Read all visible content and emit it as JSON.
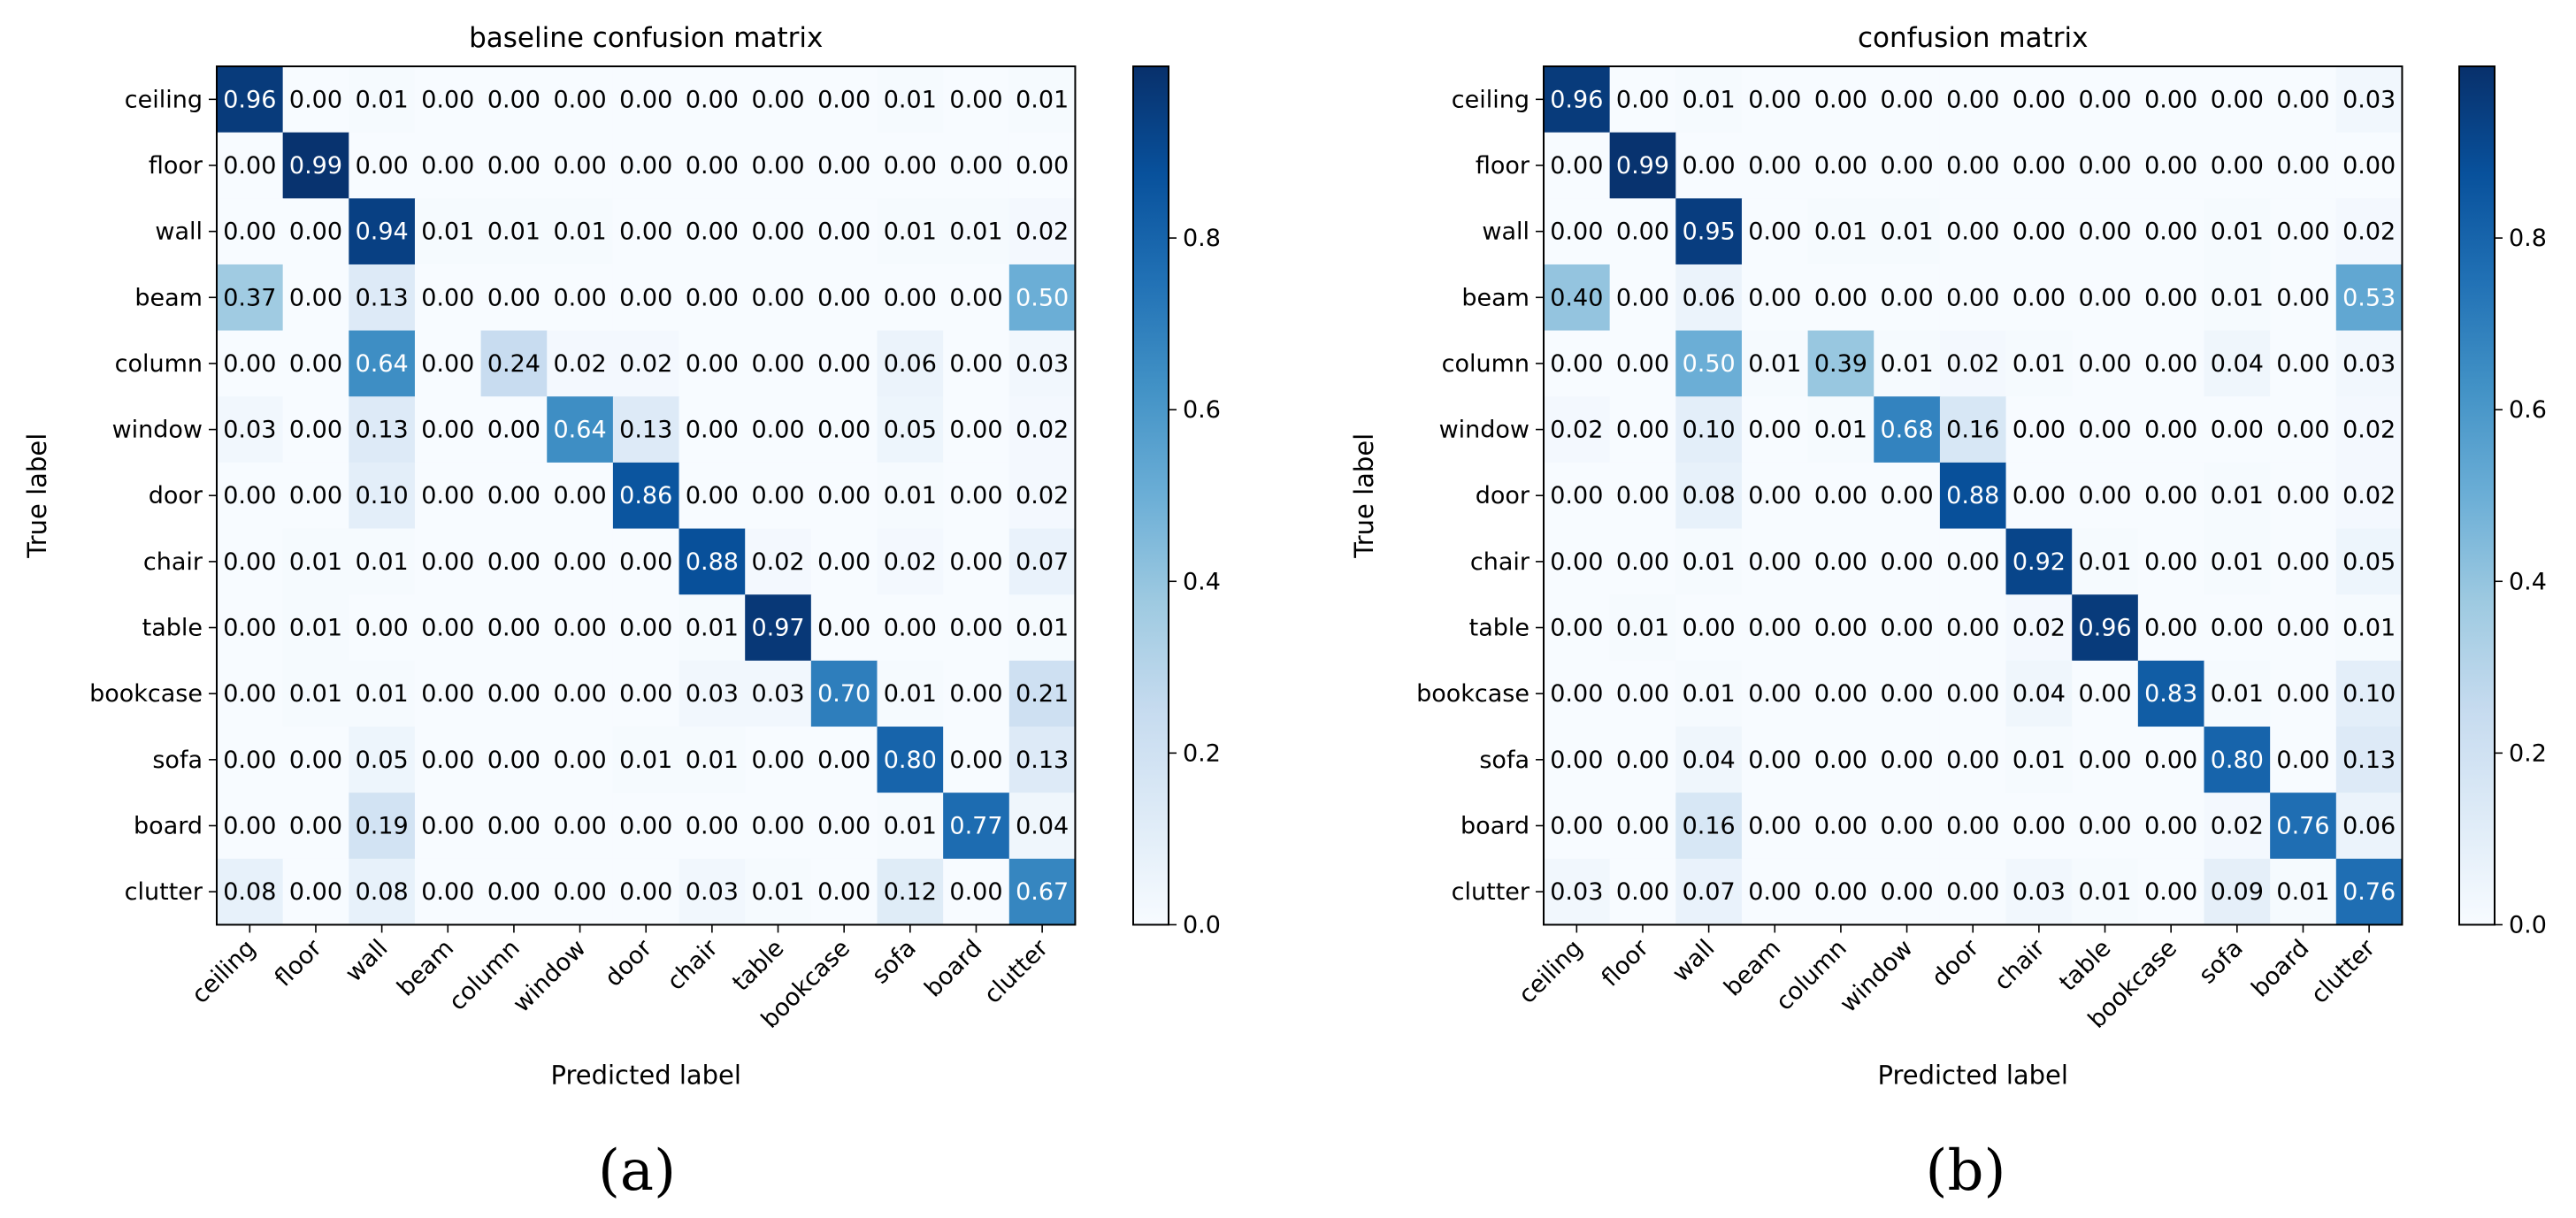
{
  "chart_data": [
    {
      "type": "heatmap",
      "panel": "(a)",
      "title": "baseline confusion matrix",
      "xlabel": "Predicted label",
      "ylabel": "True label",
      "classes": [
        "ceiling",
        "floor",
        "wall",
        "beam",
        "column",
        "window",
        "door",
        "chair",
        "table",
        "bookcase",
        "sofa",
        "board",
        "clutter"
      ],
      "colorbar": {
        "range": [
          0,
          1
        ],
        "ticks": [
          "0.0",
          "0.2",
          "0.4",
          "0.6",
          "0.8"
        ],
        "colormap": "Blues"
      },
      "values": [
        [
          0.96,
          0.0,
          0.01,
          0.0,
          0.0,
          0.0,
          0.0,
          0.0,
          0.0,
          0.0,
          0.01,
          0.0,
          0.01
        ],
        [
          0.0,
          0.99,
          0.0,
          0.0,
          0.0,
          0.0,
          0.0,
          0.0,
          0.0,
          0.0,
          0.0,
          0.0,
          0.0
        ],
        [
          0.0,
          0.0,
          0.94,
          0.01,
          0.01,
          0.01,
          0.0,
          0.0,
          0.0,
          0.0,
          0.01,
          0.01,
          0.02
        ],
        [
          0.37,
          0.0,
          0.13,
          0.0,
          0.0,
          0.0,
          0.0,
          0.0,
          0.0,
          0.0,
          0.0,
          0.0,
          0.5
        ],
        [
          0.0,
          0.0,
          0.64,
          0.0,
          0.24,
          0.02,
          0.02,
          0.0,
          0.0,
          0.0,
          0.06,
          0.0,
          0.03
        ],
        [
          0.03,
          0.0,
          0.13,
          0.0,
          0.0,
          0.64,
          0.13,
          0.0,
          0.0,
          0.0,
          0.05,
          0.0,
          0.02
        ],
        [
          0.0,
          0.0,
          0.1,
          0.0,
          0.0,
          0.0,
          0.86,
          0.0,
          0.0,
          0.0,
          0.01,
          0.0,
          0.02
        ],
        [
          0.0,
          0.01,
          0.01,
          0.0,
          0.0,
          0.0,
          0.0,
          0.88,
          0.02,
          0.0,
          0.02,
          0.0,
          0.07
        ],
        [
          0.0,
          0.01,
          0.0,
          0.0,
          0.0,
          0.0,
          0.0,
          0.01,
          0.97,
          0.0,
          0.0,
          0.0,
          0.01
        ],
        [
          0.0,
          0.01,
          0.01,
          0.0,
          0.0,
          0.0,
          0.0,
          0.03,
          0.03,
          0.7,
          0.01,
          0.0,
          0.21
        ],
        [
          0.0,
          0.0,
          0.05,
          0.0,
          0.0,
          0.0,
          0.01,
          0.01,
          0.0,
          0.0,
          0.8,
          0.0,
          0.13
        ],
        [
          0.0,
          0.0,
          0.19,
          0.0,
          0.0,
          0.0,
          0.0,
          0.0,
          0.0,
          0.0,
          0.01,
          0.77,
          0.04
        ],
        [
          0.08,
          0.0,
          0.08,
          0.0,
          0.0,
          0.0,
          0.0,
          0.03,
          0.01,
          0.0,
          0.12,
          0.0,
          0.67
        ]
      ]
    },
    {
      "type": "heatmap",
      "panel": "(b)",
      "title": "confusion matrix",
      "xlabel": "Predicted label",
      "ylabel": "True label",
      "classes": [
        "ceiling",
        "floor",
        "wall",
        "beam",
        "column",
        "window",
        "door",
        "chair",
        "table",
        "bookcase",
        "sofa",
        "board",
        "clutter"
      ],
      "colorbar": {
        "range": [
          0,
          1
        ],
        "ticks": [
          "0.0",
          "0.2",
          "0.4",
          "0.6",
          "0.8"
        ],
        "colormap": "Blues"
      },
      "values": [
        [
          0.96,
          0.0,
          0.01,
          0.0,
          0.0,
          0.0,
          0.0,
          0.0,
          0.0,
          0.0,
          0.0,
          0.0,
          0.03
        ],
        [
          0.0,
          0.99,
          0.0,
          0.0,
          0.0,
          0.0,
          0.0,
          0.0,
          0.0,
          0.0,
          0.0,
          0.0,
          0.0
        ],
        [
          0.0,
          0.0,
          0.95,
          0.0,
          0.01,
          0.01,
          0.0,
          0.0,
          0.0,
          0.0,
          0.01,
          0.0,
          0.02
        ],
        [
          0.4,
          0.0,
          0.06,
          0.0,
          0.0,
          0.0,
          0.0,
          0.0,
          0.0,
          0.0,
          0.01,
          0.0,
          0.53
        ],
        [
          0.0,
          0.0,
          0.5,
          0.01,
          0.39,
          0.01,
          0.02,
          0.01,
          0.0,
          0.0,
          0.04,
          0.0,
          0.03
        ],
        [
          0.02,
          0.0,
          0.1,
          0.0,
          0.01,
          0.68,
          0.16,
          0.0,
          0.0,
          0.0,
          0.0,
          0.0,
          0.02
        ],
        [
          0.0,
          0.0,
          0.08,
          0.0,
          0.0,
          0.0,
          0.88,
          0.0,
          0.0,
          0.0,
          0.01,
          0.0,
          0.02
        ],
        [
          0.0,
          0.0,
          0.01,
          0.0,
          0.0,
          0.0,
          0.0,
          0.92,
          0.01,
          0.0,
          0.01,
          0.0,
          0.05
        ],
        [
          0.0,
          0.01,
          0.0,
          0.0,
          0.0,
          0.0,
          0.0,
          0.02,
          0.96,
          0.0,
          0.0,
          0.0,
          0.01
        ],
        [
          0.0,
          0.0,
          0.01,
          0.0,
          0.0,
          0.0,
          0.0,
          0.04,
          0.0,
          0.83,
          0.01,
          0.0,
          0.1
        ],
        [
          0.0,
          0.0,
          0.04,
          0.0,
          0.0,
          0.0,
          0.0,
          0.01,
          0.0,
          0.0,
          0.8,
          0.0,
          0.13
        ],
        [
          0.0,
          0.0,
          0.16,
          0.0,
          0.0,
          0.0,
          0.0,
          0.0,
          0.0,
          0.0,
          0.02,
          0.76,
          0.06
        ],
        [
          0.03,
          0.0,
          0.07,
          0.0,
          0.0,
          0.0,
          0.0,
          0.03,
          0.01,
          0.0,
          0.09,
          0.01,
          0.76
        ]
      ]
    }
  ]
}
